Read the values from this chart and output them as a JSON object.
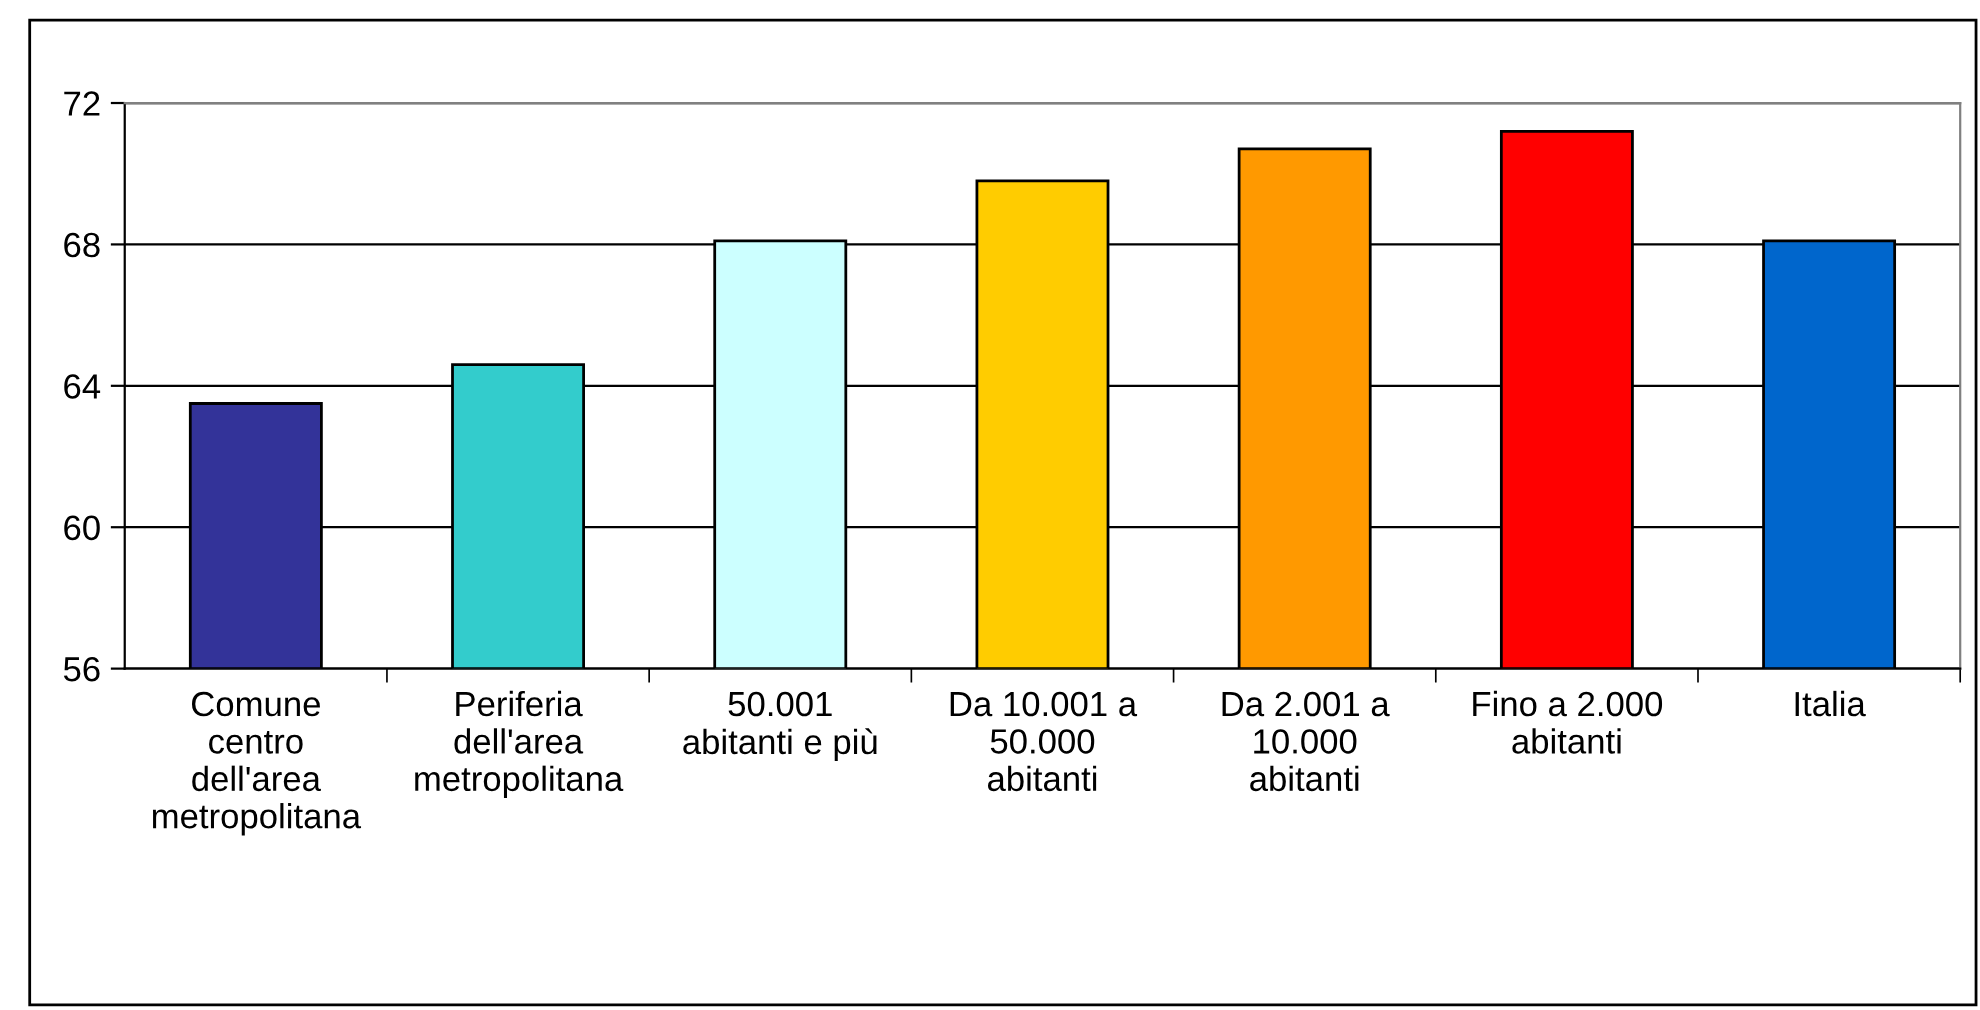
{
  "chart_data": {
    "type": "bar",
    "categories": [
      "Comune\ncentro\ndell'area\nmetropolitana",
      "Periferia\ndell'area\nmetropolitana",
      "50.001\nabitanti e più",
      "Da 10.001 a\n50.000\nabitanti",
      "Da 2.001 a\n10.000\nabitanti",
      "Fino a 2.000\nabitanti",
      "Italia"
    ],
    "values": [
      63.5,
      64.6,
      68.1,
      69.8,
      70.7,
      71.2,
      68.1
    ],
    "colors": [
      "#333399",
      "#33cccc",
      "#ccffff",
      "#ffcc00",
      "#ff9900",
      "#ff0000",
      "#0066cc"
    ],
    "ylim": [
      56,
      72
    ],
    "yticks": [
      56,
      60,
      64,
      68,
      72
    ],
    "grid": "y",
    "legend": false
  }
}
